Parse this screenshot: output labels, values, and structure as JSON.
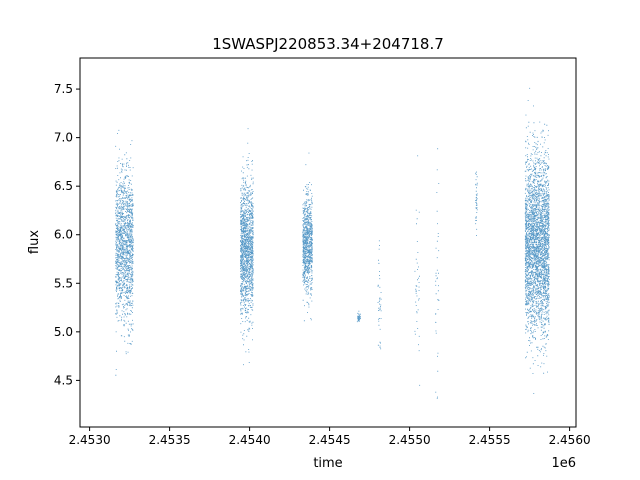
{
  "chart_data": {
    "type": "scatter",
    "title": "1SWASPJ220853.34+204718.7",
    "xlabel": "time",
    "ylabel": "flux",
    "x_offset_label": "1e6",
    "xlim": [
      2.45294,
      2.45604
    ],
    "ylim": [
      4.02,
      7.82
    ],
    "x_ticks": [
      2.453,
      2.4535,
      2.454,
      2.4545,
      2.455,
      2.4555,
      2.456
    ],
    "x_tick_labels": [
      "2.4530",
      "2.4535",
      "2.4540",
      "2.4545",
      "2.4550",
      "2.4555",
      "2.4560"
    ],
    "y_ticks": [
      4.5,
      5.0,
      5.5,
      6.0,
      6.5,
      7.0,
      7.5
    ],
    "y_tick_labels": [
      "4.5",
      "5.0",
      "5.5",
      "6.0",
      "6.5",
      "7.0",
      "7.5"
    ],
    "point_color": "#1f77b4",
    "grid": false,
    "legend": "none",
    "clusters": [
      {
        "x_start": 2.45316,
        "x_end": 2.45327,
        "y_center": 5.88,
        "y_spread": 0.38,
        "density": "high"
      },
      {
        "x_start": 2.45394,
        "x_end": 2.45402,
        "y_center": 5.85,
        "y_spread": 0.35,
        "density": "high"
      },
      {
        "x_start": 2.45433,
        "x_end": 2.45439,
        "y_center": 5.9,
        "y_spread": 0.25,
        "density": "medium"
      },
      {
        "x_start": 2.45467,
        "x_end": 2.45469,
        "y_center": 5.15,
        "y_spread": 0.03,
        "density": "sparse"
      },
      {
        "x_start": 2.4548,
        "x_end": 2.45482,
        "y_center": 5.25,
        "y_spread": 0.35,
        "density": "sparse"
      },
      {
        "x_start": 2.45503,
        "x_end": 2.45506,
        "y_center": 5.6,
        "y_spread": 0.5,
        "density": "sparse"
      },
      {
        "x_start": 2.45516,
        "x_end": 2.45518,
        "y_center": 5.4,
        "y_spread": 0.5,
        "density": "sparse"
      },
      {
        "x_start": 2.45541,
        "x_end": 2.45542,
        "y_center": 6.35,
        "y_spread": 0.15,
        "density": "sparse"
      },
      {
        "x_start": 2.45572,
        "x_end": 2.45587,
        "y_center": 5.9,
        "y_spread": 0.45,
        "density": "very-high"
      }
    ]
  }
}
